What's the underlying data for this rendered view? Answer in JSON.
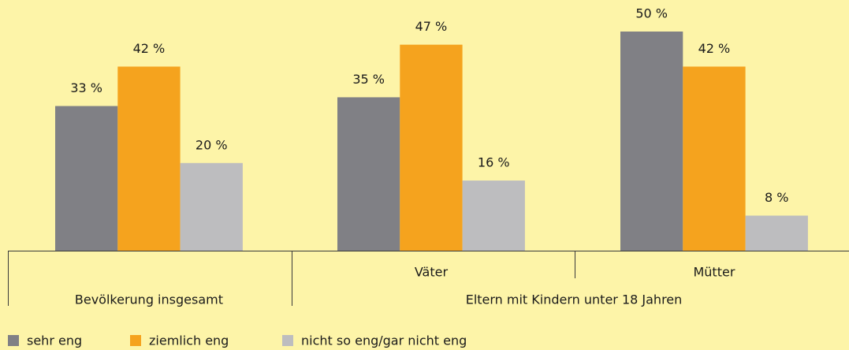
{
  "chart_data": {
    "type": "bar",
    "categories": [
      "Bevölkerung insgesamt",
      "Väter",
      "Mütter"
    ],
    "parent_label": "Eltern mit Kindern unter 18 Jahren",
    "series": [
      {
        "name": "sehr eng",
        "color": "#808085",
        "values": [
          33,
          35,
          50
        ],
        "value_labels": [
          "33 %",
          "35 %",
          "50 %"
        ]
      },
      {
        "name": "ziemlich eng",
        "color": "#f5a31e",
        "values": [
          42,
          47,
          42
        ],
        "value_labels": [
          "42 %",
          "47 %",
          "42 %"
        ]
      },
      {
        "name": "nicht so eng/gar nicht eng",
        "color": "#bdbdbf",
        "values": [
          20,
          16,
          8
        ],
        "value_labels": [
          "20 %",
          "16 %",
          "8 %"
        ]
      }
    ]
  }
}
